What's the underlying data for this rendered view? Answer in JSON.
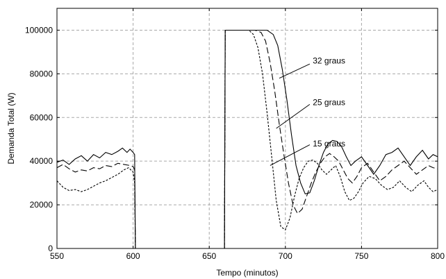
{
  "chart_data": {
    "type": "line",
    "title": "",
    "xlabel": "Tempo (minutos)",
    "ylabel": "Demanda Total (W)",
    "xlim": [
      550,
      800
    ],
    "ylim": [
      0,
      110000
    ],
    "xticks": [
      550,
      600,
      650,
      700,
      750,
      800
    ],
    "yticks": [
      0,
      20000,
      40000,
      60000,
      80000,
      100000
    ],
    "grid": true,
    "series": [
      {
        "name": "32 graus",
        "style": "solid",
        "color": "#000000",
        "segments": [
          [
            [
              550,
              39500
            ],
            [
              554,
              40500
            ],
            [
              558,
              38500
            ],
            [
              562,
              41000
            ],
            [
              566,
              42500
            ],
            [
              570,
              40000
            ],
            [
              574,
              43000
            ],
            [
              578,
              41500
            ],
            [
              582,
              44000
            ],
            [
              586,
              43000
            ],
            [
              590,
              44500
            ],
            [
              593,
              46000
            ],
            [
              596,
              44000
            ],
            [
              598,
              45500
            ],
            [
              600,
              44000
            ],
            [
              601,
              43000
            ],
            [
              601.5,
              0
            ]
          ],
          [
            [
              660,
              0
            ],
            [
              660.5,
              100000
            ],
            [
              670,
              100000
            ],
            [
              680,
              100000
            ],
            [
              688,
              100000
            ],
            [
              692,
              98000
            ],
            [
              695,
              93000
            ],
            [
              698,
              82000
            ],
            [
              701,
              68000
            ],
            [
              704,
              52000
            ],
            [
              707,
              38000
            ],
            [
              710,
              30000
            ],
            [
              713,
              25000
            ],
            [
              716,
              25500
            ],
            [
              719,
              31000
            ],
            [
              722,
              38000
            ],
            [
              725,
              44000
            ],
            [
              728,
              48000
            ],
            [
              731,
              49500
            ],
            [
              734,
              49000
            ],
            [
              737,
              46500
            ],
            [
              740,
              42000
            ],
            [
              743,
              38000
            ],
            [
              746,
              40000
            ],
            [
              750,
              42000
            ],
            [
              754,
              38000
            ],
            [
              758,
              34000
            ],
            [
              762,
              38000
            ],
            [
              766,
              43000
            ],
            [
              770,
              44000
            ],
            [
              774,
              46000
            ],
            [
              778,
              42000
            ],
            [
              782,
              38000
            ],
            [
              786,
              42000
            ],
            [
              790,
              45000
            ],
            [
              794,
              41000
            ],
            [
              797,
              43000
            ],
            [
              800,
              42000
            ]
          ]
        ]
      },
      {
        "name": "25 graus",
        "style": "dashed",
        "color": "#000000",
        "segments": [
          [
            [
              550,
              37000
            ],
            [
              554,
              38500
            ],
            [
              558,
              36500
            ],
            [
              562,
              35000
            ],
            [
              566,
              36000
            ],
            [
              570,
              35500
            ],
            [
              574,
              37000
            ],
            [
              578,
              36500
            ],
            [
              582,
              38000
            ],
            [
              586,
              37500
            ],
            [
              590,
              39000
            ],
            [
              594,
              38500
            ],
            [
              598,
              38000
            ],
            [
              600,
              37500
            ],
            [
              601,
              36000
            ],
            [
              601.5,
              0
            ]
          ],
          [
            [
              660,
              0
            ],
            [
              660.5,
              100000
            ],
            [
              670,
              100000
            ],
            [
              680,
              100000
            ],
            [
              684,
              99000
            ],
            [
              687,
              95000
            ],
            [
              690,
              85000
            ],
            [
              693,
              72000
            ],
            [
              696,
              57000
            ],
            [
              699,
              43000
            ],
            [
              702,
              30000
            ],
            [
              705,
              20000
            ],
            [
              708,
              16000
            ],
            [
              711,
              18000
            ],
            [
              714,
              24000
            ],
            [
              717,
              30000
            ],
            [
              720,
              35000
            ],
            [
              723,
              39000
            ],
            [
              726,
              42000
            ],
            [
              729,
              43500
            ],
            [
              732,
              42000
            ],
            [
              735,
              40000
            ],
            [
              738,
              36000
            ],
            [
              741,
              32000
            ],
            [
              744,
              30000
            ],
            [
              747,
              33000
            ],
            [
              750,
              37000
            ],
            [
              754,
              39000
            ],
            [
              758,
              35000
            ],
            [
              762,
              31000
            ],
            [
              766,
              33000
            ],
            [
              770,
              36000
            ],
            [
              774,
              38000
            ],
            [
              778,
              40000
            ],
            [
              782,
              37000
            ],
            [
              786,
              34000
            ],
            [
              790,
              36000
            ],
            [
              794,
              38000
            ],
            [
              797,
              37000
            ],
            [
              800,
              36500
            ]
          ]
        ]
      },
      {
        "name": "15 graus",
        "style": "dotted",
        "color": "#000000",
        "segments": [
          [
            [
              550,
              31000
            ],
            [
              554,
              28000
            ],
            [
              558,
              26500
            ],
            [
              562,
              27000
            ],
            [
              566,
              26000
            ],
            [
              570,
              27000
            ],
            [
              574,
              28500
            ],
            [
              578,
              30000
            ],
            [
              582,
              31000
            ],
            [
              586,
              32500
            ],
            [
              590,
              34000
            ],
            [
              594,
              36000
            ],
            [
              597,
              37000
            ],
            [
              600,
              35000
            ],
            [
              601,
              30000
            ],
            [
              601.5,
              0
            ]
          ],
          [
            [
              660,
              0
            ],
            [
              660.5,
              100000
            ],
            [
              670,
              100000
            ],
            [
              676,
              100000
            ],
            [
              679,
              98000
            ],
            [
              682,
              92000
            ],
            [
              685,
              80000
            ],
            [
              688,
              62000
            ],
            [
              691,
              42000
            ],
            [
              694,
              22000
            ],
            [
              697,
              10000
            ],
            [
              700,
              8500
            ],
            [
              703,
              14000
            ],
            [
              706,
              24000
            ],
            [
              709,
              32000
            ],
            [
              712,
              37000
            ],
            [
              715,
              40000
            ],
            [
              718,
              40500
            ],
            [
              721,
              39000
            ],
            [
              724,
              36000
            ],
            [
              727,
              34000
            ],
            [
              730,
              36000
            ],
            [
              733,
              38000
            ],
            [
              736,
              33000
            ],
            [
              739,
              26000
            ],
            [
              742,
              22000
            ],
            [
              745,
              23000
            ],
            [
              748,
              26000
            ],
            [
              751,
              30000
            ],
            [
              755,
              33000
            ],
            [
              759,
              32000
            ],
            [
              763,
              29000
            ],
            [
              767,
              27000
            ],
            [
              771,
              28000
            ],
            [
              775,
              31000
            ],
            [
              779,
              28000
            ],
            [
              783,
              26000
            ],
            [
              787,
              29000
            ],
            [
              791,
              31000
            ],
            [
              794,
              28000
            ],
            [
              797,
              26000
            ],
            [
              800,
              27000
            ]
          ]
        ]
      }
    ],
    "annotations": [
      {
        "text": "32 graus",
        "series": "32 graus",
        "label_at": [
          718,
          86000
        ],
        "pointer_from": [
          716,
          84500
        ],
        "pointer_to": [
          696,
          78000
        ]
      },
      {
        "text": "25 graus",
        "series": "25 graus",
        "label_at": [
          718,
          67000
        ],
        "pointer_from": [
          716,
          66000
        ],
        "pointer_to": [
          694,
          55000
        ]
      },
      {
        "text": "15 graus",
        "series": "15 graus",
        "label_at": [
          718,
          48000
        ],
        "pointer_from": [
          716,
          47500
        ],
        "pointer_to": [
          690,
          38000
        ]
      }
    ]
  }
}
